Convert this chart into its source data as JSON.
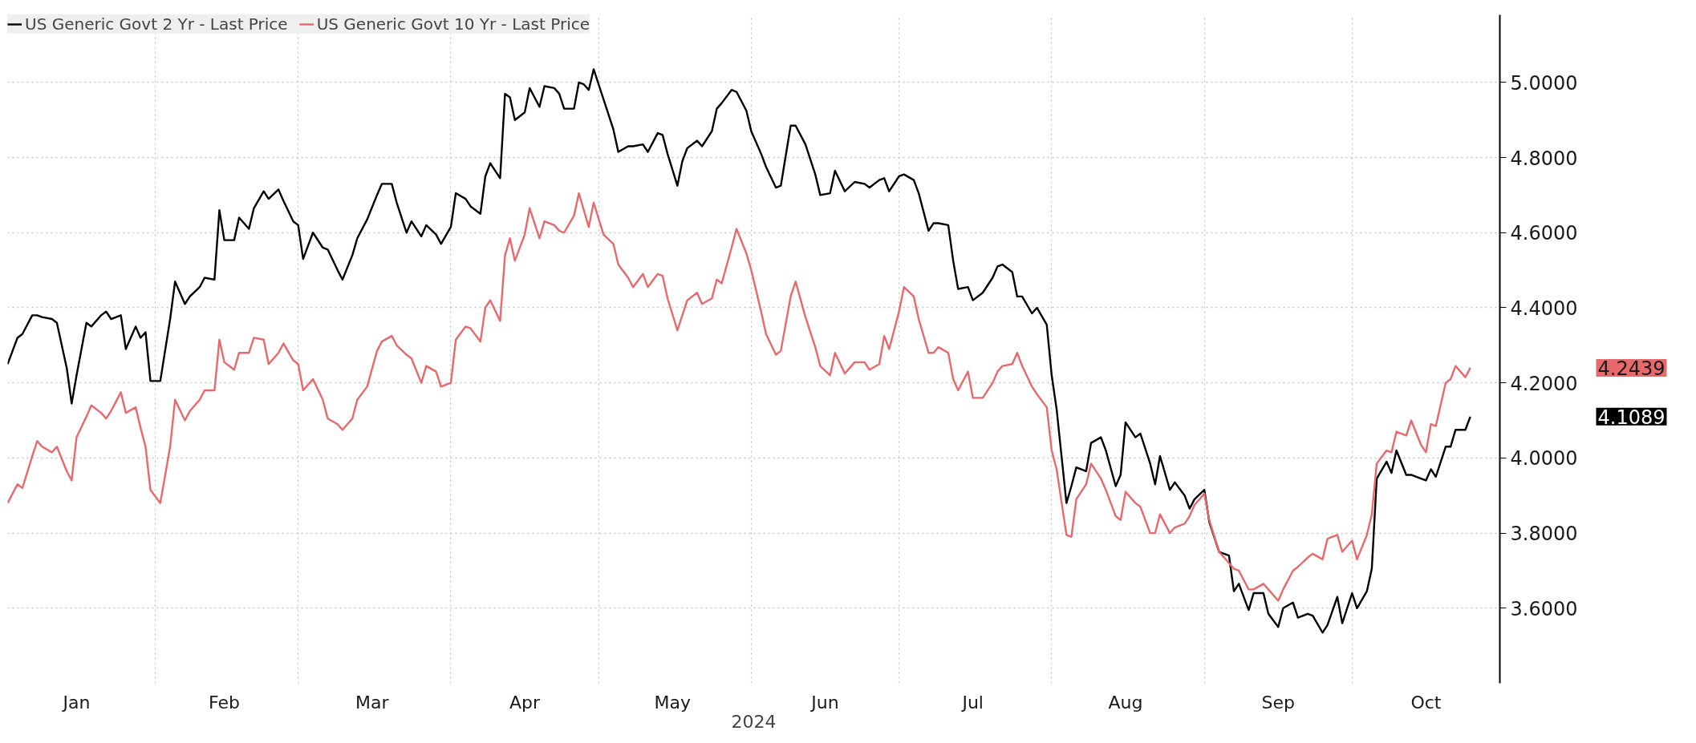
{
  "chart_data": {
    "type": "line",
    "xlabel": "2024",
    "x": [
      "2024-01-02",
      "2024-01-04",
      "2024-01-05",
      "2024-01-07",
      "2024-01-08",
      "2024-01-09",
      "2024-01-11",
      "2024-01-12",
      "2024-01-14",
      "2024-01-15",
      "2024-01-16",
      "2024-01-18",
      "2024-01-19",
      "2024-01-21",
      "2024-01-22",
      "2024-01-23",
      "2024-01-25",
      "2024-01-26",
      "2024-01-28",
      "2024-01-29",
      "2024-01-30",
      "2024-01-31",
      "2024-02-02",
      "2024-02-04",
      "2024-02-05",
      "2024-02-07",
      "2024-02-08",
      "2024-02-10",
      "2024-02-11",
      "2024-02-13",
      "2024-02-14",
      "2024-02-15",
      "2024-02-17",
      "2024-02-18",
      "2024-02-20",
      "2024-02-21",
      "2024-02-23",
      "2024-02-24",
      "2024-02-26",
      "2024-02-27",
      "2024-02-29",
      "2024-03-01",
      "2024-03-02",
      "2024-03-04",
      "2024-03-06",
      "2024-03-07",
      "2024-03-09",
      "2024-03-10",
      "2024-03-12",
      "2024-03-13",
      "2024-03-15",
      "2024-03-17",
      "2024-03-18",
      "2024-03-20",
      "2024-03-21",
      "2024-03-23",
      "2024-03-24",
      "2024-03-26",
      "2024-03-27",
      "2024-03-29",
      "2024-03-30",
      "2024-04-01",
      "2024-04-02",
      "2024-04-04",
      "2024-04-05",
      "2024-04-07",
      "2024-04-08",
      "2024-04-09",
      "2024-04-11",
      "2024-04-12",
      "2024-04-13",
      "2024-04-14",
      "2024-04-16",
      "2024-04-17",
      "2024-04-19",
      "2024-04-20",
      "2024-04-22",
      "2024-04-23",
      "2024-04-24",
      "2024-04-26",
      "2024-04-27",
      "2024-04-28",
      "2024-04-29",
      "2024-04-30",
      "2024-05-02",
      "2024-05-04",
      "2024-05-05",
      "2024-05-07",
      "2024-05-08",
      "2024-05-10",
      "2024-05-11",
      "2024-05-13",
      "2024-05-14",
      "2024-05-15",
      "2024-05-17",
      "2024-05-18",
      "2024-05-19",
      "2024-05-21",
      "2024-05-22",
      "2024-05-24",
      "2024-05-25",
      "2024-05-26",
      "2024-05-28",
      "2024-05-29",
      "2024-05-31",
      "2024-06-01",
      "2024-06-03",
      "2024-06-04",
      "2024-06-06",
      "2024-06-07",
      "2024-06-09",
      "2024-06-10",
      "2024-06-12",
      "2024-06-14",
      "2024-06-15",
      "2024-06-17",
      "2024-06-18",
      "2024-06-20",
      "2024-06-22",
      "2024-06-24",
      "2024-06-25",
      "2024-06-27",
      "2024-06-28",
      "2024-06-29",
      "2024-07-01",
      "2024-07-02",
      "2024-07-04",
      "2024-07-05",
      "2024-07-07",
      "2024-07-08",
      "2024-07-09",
      "2024-07-11",
      "2024-07-12",
      "2024-07-13",
      "2024-07-15",
      "2024-07-16",
      "2024-07-18",
      "2024-07-20",
      "2024-07-21",
      "2024-07-22",
      "2024-07-24",
      "2024-07-25",
      "2024-07-26",
      "2024-07-28",
      "2024-07-29",
      "2024-07-31",
      "2024-08-01",
      "2024-08-02",
      "2024-08-04",
      "2024-08-05",
      "2024-08-06",
      "2024-08-08",
      "2024-08-09",
      "2024-08-11",
      "2024-08-12",
      "2024-08-14",
      "2024-08-15",
      "2024-08-16",
      "2024-08-18",
      "2024-08-19",
      "2024-08-21",
      "2024-08-22",
      "2024-08-23",
      "2024-08-25",
      "2024-08-26",
      "2024-08-28",
      "2024-08-29",
      "2024-08-30",
      "2024-09-01",
      "2024-09-02",
      "2024-09-04",
      "2024-09-06",
      "2024-09-07",
      "2024-09-08",
      "2024-09-10",
      "2024-09-11",
      "2024-09-13",
      "2024-09-14",
      "2024-09-16",
      "2024-09-17",
      "2024-09-19",
      "2024-09-20",
      "2024-09-22",
      "2024-09-23",
      "2024-09-25",
      "2024-09-26",
      "2024-09-28",
      "2024-09-29",
      "2024-10-01",
      "2024-10-02",
      "2024-10-04",
      "2024-10-05",
      "2024-10-06",
      "2024-10-08",
      "2024-10-09",
      "2024-10-10",
      "2024-10-12",
      "2024-10-13",
      "2024-10-15",
      "2024-10-16",
      "2024-10-17",
      "2024-10-18",
      "2024-10-20",
      "2024-10-21",
      "2024-10-22",
      "2024-10-24",
      "2024-10-25"
    ],
    "series": [
      {
        "name": "US Generic Govt 2 Yr - Last Price",
        "color": "#000000",
        "values": [
          4.25,
          4.32,
          4.33,
          4.38,
          4.38,
          4.375,
          4.37,
          4.36,
          4.24,
          4.145,
          4.22,
          4.36,
          4.35,
          4.38,
          4.39,
          4.37,
          4.38,
          4.29,
          4.35,
          4.32,
          4.335,
          4.205,
          4.205,
          4.37,
          4.47,
          4.41,
          4.43,
          4.455,
          4.48,
          4.475,
          4.66,
          4.58,
          4.58,
          4.64,
          4.61,
          4.665,
          4.71,
          4.69,
          4.715,
          4.685,
          4.63,
          4.62,
          4.53,
          4.6,
          4.56,
          4.555,
          4.5,
          4.475,
          4.54,
          4.585,
          4.635,
          4.7,
          4.73,
          4.73,
          4.68,
          4.6,
          4.63,
          4.59,
          4.62,
          4.595,
          4.57,
          4.615,
          4.705,
          4.69,
          4.67,
          4.65,
          4.75,
          4.785,
          4.745,
          4.97,
          4.96,
          4.9,
          4.92,
          4.985,
          4.935,
          4.99,
          4.985,
          4.97,
          4.93,
          4.93,
          5.0,
          4.995,
          4.98,
          5.035,
          4.955,
          4.875,
          4.815,
          4.83,
          4.83,
          4.835,
          4.815,
          4.865,
          4.86,
          4.81,
          4.725,
          4.79,
          4.825,
          4.845,
          4.83,
          4.87,
          4.93,
          4.945,
          4.98,
          4.975,
          4.925,
          4.87,
          4.81,
          4.775,
          4.72,
          4.725,
          4.885,
          4.885,
          4.835,
          4.755,
          4.7,
          4.705,
          4.765,
          4.71,
          4.735,
          4.73,
          4.72,
          4.74,
          4.745,
          4.71,
          4.75,
          4.755,
          4.74,
          4.705,
          4.605,
          4.625,
          4.625,
          4.62,
          4.525,
          4.45,
          4.455,
          4.42,
          4.44,
          4.48,
          4.51,
          4.515,
          4.495,
          4.43,
          4.43,
          4.385,
          4.4,
          4.355,
          4.22,
          4.13,
          3.88,
          3.925,
          3.975,
          3.965,
          4.04,
          4.055,
          4.02,
          3.925,
          3.955,
          4.095,
          4.055,
          4.065,
          3.985,
          3.93,
          4.005,
          3.915,
          3.935,
          3.9,
          3.865,
          3.89,
          3.915,
          3.83,
          3.75,
          3.74,
          3.645,
          3.665,
          3.595,
          3.64,
          3.64,
          3.585,
          3.55,
          3.6,
          3.615,
          3.575,
          3.585,
          3.58,
          3.535,
          3.555,
          3.63,
          3.56,
          3.64,
          3.6,
          3.645,
          3.705,
          3.945,
          3.99,
          3.96,
          4.02,
          3.955,
          3.955,
          3.945,
          3.94,
          3.97,
          3.95,
          4.03,
          4.03,
          4.075,
          4.075,
          4.11
        ]
      },
      {
        "name": "US Generic Govt 10 Yr - Last Price",
        "color": "#e8696b",
        "values": [
          3.88,
          3.93,
          3.92,
          4.005,
          4.045,
          4.03,
          4.015,
          4.03,
          3.965,
          3.94,
          4.055,
          4.11,
          4.14,
          4.12,
          4.105,
          4.125,
          4.175,
          4.12,
          4.135,
          4.08,
          4.03,
          3.915,
          3.88,
          4.03,
          4.155,
          4.1,
          4.125,
          4.155,
          4.18,
          4.18,
          4.315,
          4.255,
          4.235,
          4.28,
          4.28,
          4.32,
          4.315,
          4.25,
          4.28,
          4.305,
          4.26,
          4.25,
          4.18,
          4.21,
          4.155,
          4.105,
          4.09,
          4.075,
          4.105,
          4.155,
          4.19,
          4.285,
          4.31,
          4.325,
          4.3,
          4.275,
          4.265,
          4.2,
          4.245,
          4.23,
          4.19,
          4.2,
          4.315,
          4.35,
          4.345,
          4.31,
          4.4,
          4.42,
          4.365,
          4.54,
          4.585,
          4.525,
          4.595,
          4.665,
          4.585,
          4.63,
          4.62,
          4.605,
          4.6,
          4.645,
          4.705,
          4.66,
          4.615,
          4.68,
          4.595,
          4.57,
          4.515,
          4.48,
          4.455,
          4.49,
          4.455,
          4.49,
          4.485,
          4.425,
          4.34,
          4.38,
          4.42,
          4.44,
          4.41,
          4.425,
          4.475,
          4.465,
          4.56,
          4.61,
          4.545,
          4.5,
          4.39,
          4.33,
          4.275,
          4.285,
          4.43,
          4.47,
          4.375,
          4.295,
          4.245,
          4.22,
          4.28,
          4.225,
          4.255,
          4.255,
          4.235,
          4.25,
          4.325,
          4.29,
          4.39,
          4.455,
          4.43,
          4.37,
          4.28,
          4.28,
          4.295,
          4.28,
          4.21,
          4.18,
          4.23,
          4.16,
          4.16,
          4.2,
          4.23,
          4.245,
          4.25,
          4.28,
          4.245,
          4.19,
          4.17,
          4.135,
          4.02,
          3.97,
          3.795,
          3.79,
          3.89,
          3.93,
          3.985,
          3.945,
          3.915,
          3.845,
          3.835,
          3.91,
          3.88,
          3.87,
          3.8,
          3.8,
          3.85,
          3.8,
          3.815,
          3.825,
          3.845,
          3.875,
          3.905,
          3.835,
          3.75,
          3.72,
          3.705,
          3.7,
          3.65,
          3.65,
          3.665,
          3.65,
          3.62,
          3.65,
          3.7,
          3.71,
          3.735,
          3.745,
          3.73,
          3.785,
          3.795,
          3.75,
          3.78,
          3.73,
          3.795,
          3.85,
          3.985,
          4.02,
          4.015,
          4.07,
          4.06,
          4.1,
          4.035,
          4.015,
          4.09,
          4.085,
          4.2,
          4.21,
          4.245,
          4.215,
          4.24
        ]
      }
    ],
    "xlim": [
      "2024-01-02",
      "2024-10-31"
    ],
    "xticks": [
      {
        "value": "2024-01-16",
        "label": "Jan"
      },
      {
        "value": "2024-02-01",
        "label": null
      },
      {
        "value": "2024-02-15",
        "label": "Feb"
      },
      {
        "value": "2024-03-01",
        "label": null
      },
      {
        "value": "2024-03-16",
        "label": "Mar"
      },
      {
        "value": "2024-04-01",
        "label": null
      },
      {
        "value": "2024-04-16",
        "label": "Apr"
      },
      {
        "value": "2024-05-01",
        "label": null
      },
      {
        "value": "2024-05-16",
        "label": "May"
      },
      {
        "value": "2024-06-01",
        "label": null
      },
      {
        "value": "2024-06-16",
        "label": "Jun"
      },
      {
        "value": "2024-07-01",
        "label": null
      },
      {
        "value": "2024-07-16",
        "label": "Jul"
      },
      {
        "value": "2024-08-01",
        "label": null
      },
      {
        "value": "2024-08-16",
        "label": "Aug"
      },
      {
        "value": "2024-09-01",
        "label": null
      },
      {
        "value": "2024-09-16",
        "label": "Sep"
      },
      {
        "value": "2024-10-01",
        "label": null
      },
      {
        "value": "2024-10-16",
        "label": "Oct"
      }
    ],
    "ylim": [
      3.4,
      5.18
    ],
    "yticks": [
      {
        "value": 3.6,
        "label": "3.6000"
      },
      {
        "value": 3.8,
        "label": "3.8000"
      },
      {
        "value": 4.0,
        "label": "4.0000"
      },
      {
        "value": 4.2,
        "label": "4.2000"
      },
      {
        "value": 4.4,
        "label": "4.4000"
      },
      {
        "value": 4.6,
        "label": "4.6000"
      },
      {
        "value": 4.8,
        "label": "4.8000"
      },
      {
        "value": 5.0,
        "label": "5.0000"
      }
    ],
    "annotations": [
      "4.1089",
      "4.2439"
    ],
    "grid": true,
    "legend": "top left",
    "line_style": "solid"
  }
}
